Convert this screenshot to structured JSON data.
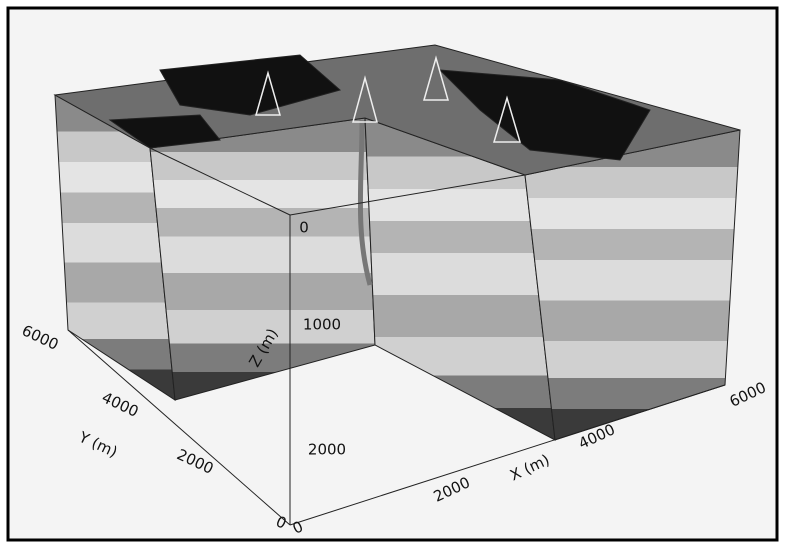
{
  "axes": {
    "x": {
      "label": "X (m)",
      "ticks": [
        0,
        2000,
        4000,
        6000
      ]
    },
    "y": {
      "label": "Y (m)",
      "ticks": [
        0,
        2000,
        4000,
        6000
      ]
    },
    "z": {
      "label": "Z (m)",
      "ticks": [
        0,
        1000,
        2000
      ]
    }
  }
}
